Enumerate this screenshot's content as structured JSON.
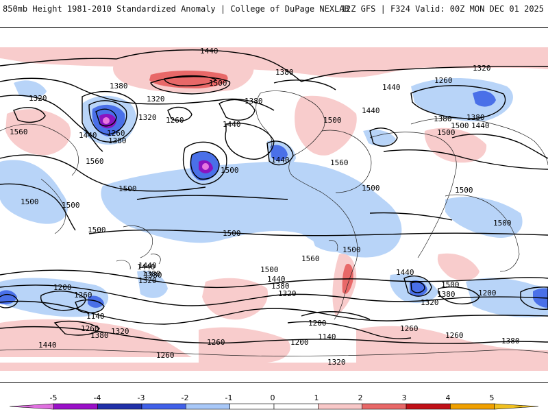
{
  "header": {
    "left": "850mb Height 1981-2010 Standardized Anomaly | College of DuPage NEXLAB",
    "right": "12Z GFS | F324 Valid: 00Z MON DEC 01 2025"
  },
  "contour_labels": [
    "1440",
    "1380",
    "1500",
    "1320",
    "1380",
    "1440",
    "1320",
    "1260",
    "1320",
    "1380",
    "1440",
    "1380",
    "1320",
    "1260",
    "1560",
    "1440",
    "1260",
    "1380",
    "1500",
    "1440",
    "1500",
    "1380",
    "1440",
    "1500",
    "1560",
    "1440",
    "1500",
    "1500",
    "1500",
    "1500",
    "1560",
    "1500",
    "1500",
    "1500",
    "1500",
    "1440",
    "1500",
    "1380",
    "1440",
    "1380",
    "1320",
    "1200",
    "1260",
    "1140",
    "1260",
    "1380",
    "1320",
    "1440",
    "1500",
    "1440",
    "1380",
    "1320",
    "1500",
    "1560",
    "1440",
    "1500",
    "1380",
    "1320",
    "1200",
    "1200",
    "1140",
    "1260",
    "1260",
    "1260",
    "1380",
    "1320",
    "1260",
    "1200"
  ],
  "legend": {
    "ticks": [
      "-5",
      "-4",
      "-3",
      "-2",
      "-1",
      "0",
      "1",
      "2",
      "3",
      "4",
      "5"
    ],
    "colors": [
      "#e070e0",
      "#9a10c8",
      "#2030a8",
      "#4060e8",
      "#a8c8f8",
      "#ffffff",
      "#ffffff",
      "#f8c8c8",
      "#e86868",
      "#c01018",
      "#f0a000",
      "#f0c020"
    ]
  }
}
